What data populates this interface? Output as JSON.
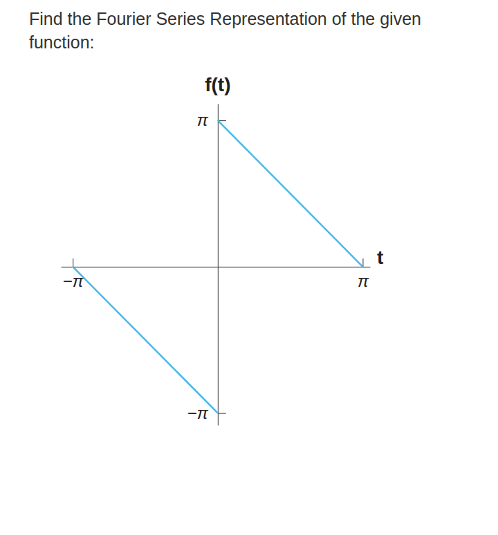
{
  "chart_data": {
    "type": "line",
    "title": [
      "Find the Fourier Series Representation of the given",
      "function:"
    ],
    "x_label": "t",
    "y_label": "f(t)",
    "x": [
      -3.14159,
      0,
      0,
      0,
      3.14159
    ],
    "series": [
      {
        "name": "f(t)",
        "color": "#4ab8e8",
        "values": [
          0,
          -3.14159,
          null,
          3.14159,
          0
        ]
      }
    ],
    "xlim": [
      -3.4,
      3.3
    ],
    "ylim": [
      -3.4,
      3.5
    ],
    "xticks": [
      {
        "value": -3.14159,
        "label": "−π"
      },
      {
        "value": 3.14159,
        "label": "π"
      }
    ],
    "yticks": [
      {
        "value": -3.14159,
        "label": "−π"
      },
      {
        "value": 3.14159,
        "label": "π"
      }
    ],
    "grid": false,
    "legend": false
  }
}
